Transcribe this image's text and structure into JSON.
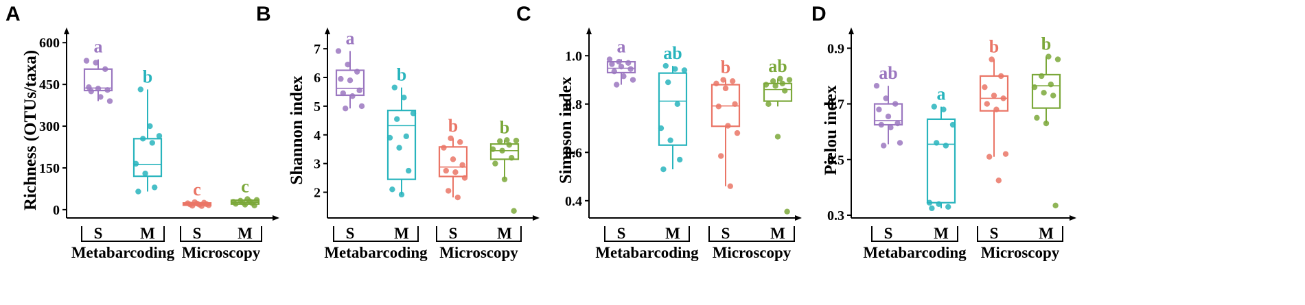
{
  "colors": {
    "metabarcoding_S": "#9b77c0",
    "metabarcoding_M": "#28b4bd",
    "microscopy_S": "#ea7566",
    "microscopy_M": "#7ba83a",
    "axis": "#000000"
  },
  "group_labels": [
    "Metabarcoding",
    "Microscopy"
  ],
  "chart_data": [
    {
      "type": "box",
      "panel": "A",
      "ylabel": "Richness (OTUs/taxa)",
      "ylim": [
        -20,
        640
      ],
      "yticks": [
        0,
        150,
        300,
        450,
        600
      ],
      "categories": [
        "S",
        "M",
        "S",
        "M"
      ],
      "groups": [
        "Metabarcoding",
        "Metabarcoding",
        "Microscopy",
        "Microscopy"
      ],
      "boxes": [
        {
          "min": 390,
          "q1": 428,
          "median": 437,
          "q3": 505,
          "max": 540
        },
        {
          "min": 65,
          "q1": 120,
          "median": 162,
          "q3": 255,
          "max": 432
        },
        {
          "min": 13,
          "q1": 16,
          "median": 20,
          "q3": 24,
          "max": 27
        },
        {
          "min": 15,
          "q1": 20,
          "median": 26,
          "q3": 34,
          "max": 38
        }
      ],
      "points": [
        [
          535,
          528,
          505,
          440,
          435,
          430,
          425,
          405,
          390
        ],
        [
          432,
          300,
          265,
          255,
          240,
          165,
          130,
          80,
          65
        ],
        [
          27,
          25,
          23,
          22,
          20,
          19,
          18,
          16,
          14,
          13
        ],
        [
          38,
          35,
          32,
          30,
          28,
          26,
          24,
          21,
          18,
          15
        ]
      ],
      "significance": [
        "a",
        "b",
        "c",
        "c"
      ]
    },
    {
      "type": "box",
      "panel": "B",
      "ylabel": "Shannon index",
      "ylim": [
        1.2,
        7.6
      ],
      "yticks": [
        2,
        3,
        4,
        5,
        6,
        7
      ],
      "categories": [
        "S",
        "M",
        "S",
        "M"
      ],
      "groups": [
        "Metabarcoding",
        "Metabarcoding",
        "Microscopy",
        "Microscopy"
      ],
      "boxes": [
        {
          "min": 4.92,
          "q1": 5.38,
          "median": 5.62,
          "q3": 6.25,
          "max": 6.92
        },
        {
          "min": 1.92,
          "q1": 2.45,
          "median": 4.32,
          "q3": 4.85,
          "max": 5.65
        },
        {
          "min": 1.82,
          "q1": 2.55,
          "median": 2.88,
          "q3": 3.58,
          "max": 3.88
        },
        {
          "min": 2.45,
          "q1": 3.15,
          "median": 3.45,
          "q3": 3.68,
          "max": 3.82
        }
      ],
      "points": [
        [
          6.92,
          6.45,
          6.2,
          5.95,
          5.9,
          5.55,
          5.45,
          5.35,
          5.0,
          4.92
        ],
        [
          5.65,
          5.3,
          4.75,
          4.55,
          3.95,
          3.9,
          3.55,
          2.75,
          2.1,
          1.92
        ],
        [
          3.88,
          3.75,
          3.55,
          3.15,
          2.95,
          2.75,
          2.7,
          2.5,
          2.05,
          1.82
        ],
        [
          3.82,
          3.8,
          3.78,
          3.65,
          3.5,
          3.45,
          3.2,
          3.0,
          2.45,
          1.35
        ]
      ],
      "significance": [
        "a",
        "b",
        "b",
        "b"
      ]
    },
    {
      "type": "box",
      "panel": "C",
      "ylabel": "Simpson index",
      "ylim": [
        0.34,
        1.1
      ],
      "yticks": [
        0.4,
        0.6,
        0.8,
        1.0
      ],
      "categories": [
        "S",
        "M",
        "S",
        "M"
      ],
      "groups": [
        "Metabarcoding",
        "Metabarcoding",
        "Microscopy",
        "Microscopy"
      ],
      "boxes": [
        {
          "min": 0.88,
          "q1": 0.93,
          "median": 0.948,
          "q3": 0.975,
          "max": 0.985
        },
        {
          "min": 0.53,
          "q1": 0.63,
          "median": 0.812,
          "q3": 0.928,
          "max": 0.958
        },
        {
          "min": 0.46,
          "q1": 0.708,
          "median": 0.792,
          "q3": 0.88,
          "max": 0.9
        },
        {
          "min": 0.79,
          "q1": 0.812,
          "median": 0.86,
          "q3": 0.885,
          "max": 0.905
        }
      ],
      "points": [
        [
          0.985,
          0.975,
          0.97,
          0.965,
          0.955,
          0.945,
          0.935,
          0.915,
          0.9,
          0.88
        ],
        [
          0.958,
          0.945,
          0.94,
          0.89,
          0.8,
          0.7,
          0.65,
          0.57,
          0.53
        ],
        [
          0.9,
          0.895,
          0.885,
          0.865,
          0.8,
          0.79,
          0.71,
          0.68,
          0.585,
          0.46
        ],
        [
          0.905,
          0.9,
          0.895,
          0.885,
          0.88,
          0.875,
          0.855,
          0.8,
          0.665,
          0.355
        ]
      ],
      "significance": [
        "a",
        "ab",
        "b",
        "ab"
      ]
    },
    {
      "type": "box",
      "panel": "D",
      "ylabel": "Pielou index",
      "ylim": [
        0.3,
        0.96
      ],
      "yticks": [
        0.3,
        0.5,
        0.7,
        0.9
      ],
      "categories": [
        "S",
        "M",
        "S",
        "M"
      ],
      "groups": [
        "Metabarcoding",
        "Metabarcoding",
        "Microscopy",
        "Microscopy"
      ],
      "boxes": [
        {
          "min": 0.555,
          "q1": 0.625,
          "median": 0.64,
          "q3": 0.7,
          "max": 0.765
        },
        {
          "min": 0.325,
          "q1": 0.345,
          "median": 0.555,
          "q3": 0.645,
          "max": 0.69
        },
        {
          "min": 0.51,
          "q1": 0.675,
          "median": 0.72,
          "q3": 0.8,
          "max": 0.86
        },
        {
          "min": 0.63,
          "q1": 0.685,
          "median": 0.765,
          "q3": 0.805,
          "max": 0.87
        }
      ],
      "points": [
        [
          0.765,
          0.72,
          0.7,
          0.68,
          0.655,
          0.63,
          0.625,
          0.615,
          0.56,
          0.55
        ],
        [
          0.69,
          0.68,
          0.625,
          0.56,
          0.55,
          0.345,
          0.34,
          0.33,
          0.325
        ],
        [
          0.86,
          0.8,
          0.76,
          0.73,
          0.72,
          0.7,
          0.68,
          0.52,
          0.51,
          0.425
        ],
        [
          0.87,
          0.86,
          0.8,
          0.77,
          0.76,
          0.74,
          0.73,
          0.65,
          0.63,
          0.335
        ]
      ],
      "significance": [
        "ab",
        "a",
        "b",
        "b"
      ]
    }
  ]
}
